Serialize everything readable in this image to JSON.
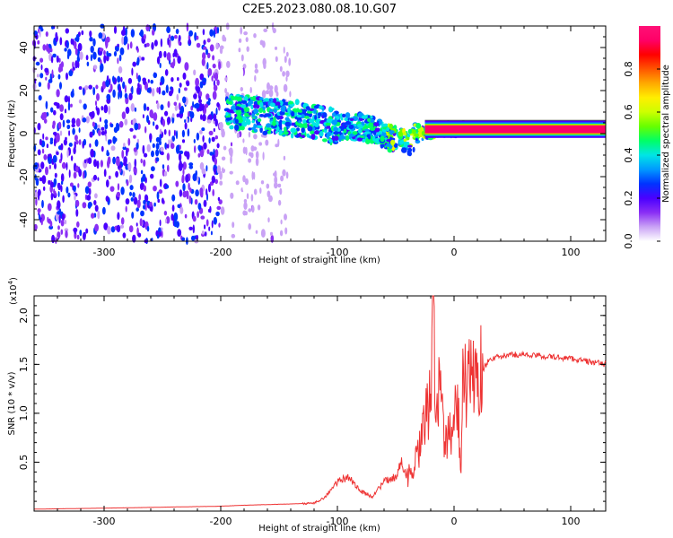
{
  "title": "C2E5.2023.080.08.10.G07",
  "chart_data": [
    {
      "type": "heatmap",
      "xlabel": "Height of straight line (km)",
      "ylabel": "Frequency (Hz)",
      "xlim": [
        -360,
        130
      ],
      "ylim": [
        -50,
        50
      ],
      "xticks": [
        -300,
        -200,
        -100,
        0,
        100
      ],
      "yticks": [
        -40,
        -20,
        0,
        20,
        40
      ],
      "colorbar": {
        "label": "Normalized spectral amplitude",
        "range": [
          0,
          1
        ],
        "ticks": [
          "0.0",
          "0.2",
          "0.4",
          "0.6",
          "0.8"
        ],
        "colors": [
          "#ffffff",
          "#c9a2f5",
          "#8a2ff5",
          "#4a00ff",
          "#0033ff",
          "#0099ff",
          "#00e5e5",
          "#00ff66",
          "#66ff00",
          "#ccff00",
          "#ffee00",
          "#ffaa00",
          "#ff5500",
          "#ff0000",
          "#ff0066",
          "#ff1177"
        ]
      },
      "noise_region": {
        "x": [
          -360,
          -140
        ],
        "y": [
          -50,
          50
        ]
      },
      "signal_track": [
        {
          "x": -195,
          "y": 10
        },
        {
          "x": -180,
          "y": 10
        },
        {
          "x": -160,
          "y": 8
        },
        {
          "x": -140,
          "y": 7
        },
        {
          "x": -120,
          "y": 6
        },
        {
          "x": -100,
          "y": 3
        },
        {
          "x": -80,
          "y": 3
        },
        {
          "x": -65,
          "y": 1
        },
        {
          "x": -50,
          "y": -3
        },
        {
          "x": -40,
          "y": -5
        },
        {
          "x": -30,
          "y": 0
        },
        {
          "x": -20,
          "y": 1
        },
        {
          "x": -10,
          "y": 2
        },
        {
          "x": 0,
          "y": 2
        },
        {
          "x": 20,
          "y": 2
        },
        {
          "x": 60,
          "y": 2
        },
        {
          "x": 100,
          "y": 2
        },
        {
          "x": 130,
          "y": 2
        }
      ]
    },
    {
      "type": "line",
      "xlabel": "Height of straight line (km)",
      "ylabel": "SNR (10 * v/v)",
      "scale_label": "(x10",
      "scale_exponent": "4",
      "scale_close": ")",
      "xlim": [
        -360,
        130
      ],
      "ylim": [
        0,
        2.2
      ],
      "xticks": [
        -300,
        -200,
        -100,
        0,
        100
      ],
      "yticks": [
        "0.5",
        "1.0",
        "1.5",
        "2.0"
      ],
      "line_color": "#ee3333",
      "series": {
        "x": [
          -360,
          -300,
          -250,
          -200,
          -180,
          -150,
          -120,
          -110,
          -100,
          -90,
          -80,
          -70,
          -60,
          -50,
          -45,
          -40,
          -35,
          -30,
          -25,
          -20,
          -18,
          -15,
          -12,
          -10,
          -8,
          -5,
          -2,
          0,
          3,
          6,
          8,
          10,
          12,
          15,
          20,
          25,
          30,
          40,
          50,
          60,
          80,
          100,
          130
        ],
        "y": [
          0.02,
          0.03,
          0.04,
          0.05,
          0.06,
          0.07,
          0.08,
          0.15,
          0.3,
          0.35,
          0.2,
          0.15,
          0.3,
          0.35,
          0.5,
          0.35,
          0.4,
          0.6,
          0.9,
          1.2,
          2.2,
          0.8,
          1.7,
          1.0,
          0.6,
          0.8,
          0.9,
          0.9,
          1.2,
          0.3,
          1.8,
          1.1,
          1.3,
          1.35,
          1.4,
          1.45,
          1.55,
          1.58,
          1.6,
          1.6,
          1.58,
          1.56,
          1.5
        ]
      }
    }
  ]
}
